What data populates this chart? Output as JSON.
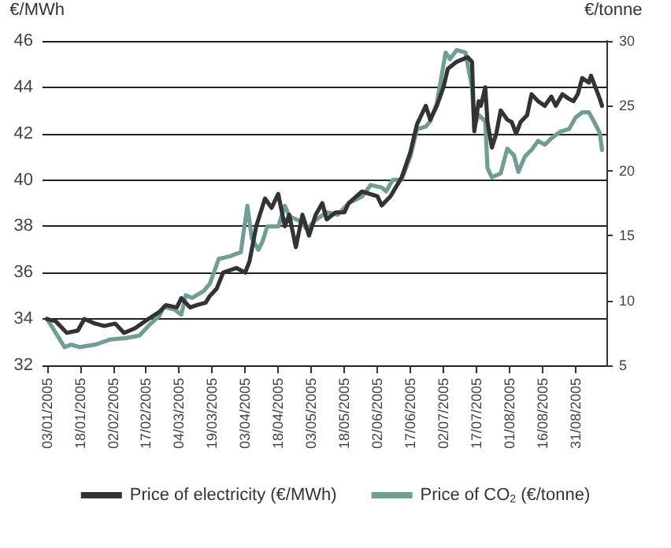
{
  "chart_data": {
    "type": "line",
    "ylabel": "€/MWh",
    "y2label": "€/tonne",
    "xlim": [
      "2005-01-01",
      "2005-09-14"
    ],
    "xticks": [
      {
        "value": "2005-01-03",
        "label": "03/01/2005"
      },
      {
        "value": "2005-01-18",
        "label": "18/01/2005"
      },
      {
        "value": "2005-02-02",
        "label": "02/02/2005"
      },
      {
        "value": "2005-02-17",
        "label": "17/02/2005"
      },
      {
        "value": "2005-03-04",
        "label": "04/03/2005"
      },
      {
        "value": "2005-03-19",
        "label": "19/03/2005"
      },
      {
        "value": "2005-04-03",
        "label": "03/04/2005"
      },
      {
        "value": "2005-04-18",
        "label": "18/04/2005"
      },
      {
        "value": "2005-05-03",
        "label": "03/05/2005"
      },
      {
        "value": "2005-05-18",
        "label": "18/05/2005"
      },
      {
        "value": "2005-06-02",
        "label": "02/06/2005"
      },
      {
        "value": "2005-06-17",
        "label": "17/06/2005"
      },
      {
        "value": "2005-07-02",
        "label": "02/07/2005"
      },
      {
        "value": "2005-07-17",
        "label": "17/07/2005"
      },
      {
        "value": "2005-08-01",
        "label": "01/08/2005"
      },
      {
        "value": "2005-08-16",
        "label": "16/08/2005"
      },
      {
        "value": "2005-08-31",
        "label": "31/08/2005"
      }
    ],
    "ylim": [
      32,
      46
    ],
    "yticks": [
      32,
      34,
      36,
      38,
      40,
      42,
      44,
      46
    ],
    "y2lim": [
      5,
      30
    ],
    "y2ticks": [
      5,
      10,
      15,
      20,
      25,
      30
    ],
    "grid": "y",
    "legend": "bottom",
    "line_style": "solid",
    "series": [
      {
        "name": "Price of electricity (€/MWh)",
        "color": "#333333",
        "x": [
          "2005-01-03",
          "2005-01-07",
          "2005-01-12",
          "2005-01-17",
          "2005-01-20",
          "2005-01-25",
          "2005-01-29",
          "2005-02-03",
          "2005-02-07",
          "2005-02-12",
          "2005-02-18",
          "2005-02-23",
          "2005-02-26",
          "2005-03-03",
          "2005-03-05",
          "2005-03-09",
          "2005-03-12",
          "2005-03-16",
          "2005-03-18",
          "2005-03-21",
          "2005-03-24",
          "2005-03-30",
          "2005-04-03",
          "2005-04-05",
          "2005-04-08",
          "2005-04-12",
          "2005-04-15",
          "2005-04-18",
          "2005-04-21",
          "2005-04-23",
          "2005-04-26",
          "2005-04-29",
          "2005-05-02",
          "2005-05-05",
          "2005-05-08",
          "2005-05-10",
          "2005-05-14",
          "2005-05-18",
          "2005-05-20",
          "2005-05-26",
          "2005-06-02",
          "2005-06-04",
          "2005-06-08",
          "2005-06-13",
          "2005-06-17",
          "2005-06-20",
          "2005-06-24",
          "2005-06-26",
          "2005-06-29",
          "2005-07-02",
          "2005-07-04",
          "2005-07-08",
          "2005-07-13",
          "2005-07-15",
          "2005-07-16",
          "2005-07-18",
          "2005-07-19",
          "2005-07-21",
          "2005-07-22",
          "2005-07-24",
          "2005-07-26",
          "2005-07-28",
          "2005-07-31",
          "2005-08-02",
          "2005-08-04",
          "2005-08-06",
          "2005-08-09",
          "2005-08-11",
          "2005-08-14",
          "2005-08-17",
          "2005-08-20",
          "2005-08-22",
          "2005-08-25",
          "2005-08-28",
          "2005-08-30",
          "2005-09-01",
          "2005-09-03",
          "2005-09-06",
          "2005-09-07",
          "2005-09-09",
          "2005-09-11",
          "2005-09-12"
        ],
        "values": [
          34.0,
          33.9,
          33.4,
          33.5,
          34.0,
          33.8,
          33.7,
          33.8,
          33.4,
          33.6,
          34.0,
          34.3,
          34.6,
          34.5,
          34.9,
          34.5,
          34.6,
          34.7,
          35.0,
          35.3,
          36.0,
          36.2,
          36.0,
          36.5,
          38.0,
          39.2,
          38.8,
          39.4,
          38.0,
          38.5,
          37.1,
          38.5,
          37.6,
          38.5,
          39.0,
          38.3,
          38.6,
          38.6,
          39.0,
          39.5,
          39.3,
          38.9,
          39.3,
          40.1,
          41.2,
          42.4,
          43.2,
          42.6,
          43.2,
          44.0,
          44.8,
          45.1,
          45.3,
          45.1,
          42.1,
          43.4,
          43.2,
          44.0,
          42.5,
          41.4,
          42.0,
          43.0,
          42.6,
          42.5,
          42.0,
          42.5,
          42.8,
          43.7,
          43.4,
          43.2,
          43.6,
          43.2,
          43.7,
          43.5,
          43.4,
          43.7,
          44.4,
          44.2,
          44.5,
          44.0,
          43.5,
          43.2
        ]
      },
      {
        "name": "Price of CO$_{2}$ (€/tonne)",
        "color": "#6e9e94",
        "axis": "y2",
        "x": [
          "2005-01-03",
          "2005-01-07",
          "2005-01-11",
          "2005-01-14",
          "2005-01-18",
          "2005-01-25",
          "2005-02-01",
          "2005-02-08",
          "2005-02-14",
          "2005-02-19",
          "2005-02-23",
          "2005-02-25",
          "2005-03-02",
          "2005-03-05",
          "2005-03-07",
          "2005-03-10",
          "2005-03-15",
          "2005-03-18",
          "2005-03-22",
          "2005-03-27",
          "2005-03-30",
          "2005-04-01",
          "2005-04-04",
          "2005-04-06",
          "2005-04-09",
          "2005-04-11",
          "2005-04-13",
          "2005-04-18",
          "2005-04-21",
          "2005-04-23",
          "2005-04-28",
          "2005-05-01",
          "2005-05-05",
          "2005-05-10",
          "2005-05-15",
          "2005-05-20",
          "2005-05-26",
          "2005-05-30",
          "2005-06-04",
          "2005-06-06",
          "2005-06-09",
          "2005-06-13",
          "2005-06-17",
          "2005-06-20",
          "2005-06-24",
          "2005-06-26",
          "2005-06-29",
          "2005-07-03",
          "2005-07-05",
          "2005-07-08",
          "2005-07-12",
          "2005-07-15",
          "2005-07-16",
          "2005-07-18",
          "2005-07-21",
          "2005-07-22",
          "2005-07-24",
          "2005-07-28",
          "2005-07-31",
          "2005-08-03",
          "2005-08-05",
          "2005-08-08",
          "2005-08-11",
          "2005-08-14",
          "2005-08-17",
          "2005-08-20",
          "2005-08-24",
          "2005-08-28",
          "2005-08-31",
          "2005-09-03",
          "2005-09-06",
          "2005-09-08",
          "2005-09-11",
          "2005-09-12"
        ],
        "values": [
          8.6,
          7.5,
          6.4,
          6.6,
          6.4,
          6.6,
          7.0,
          7.1,
          7.3,
          8.2,
          8.8,
          9.5,
          9.3,
          8.9,
          10.4,
          10.2,
          10.7,
          11.3,
          13.2,
          13.4,
          13.6,
          13.7,
          17.3,
          14.8,
          13.9,
          14.6,
          15.7,
          15.7,
          17.3,
          16.5,
          16.1,
          15.5,
          16.2,
          16.8,
          16.6,
          17.5,
          18.0,
          18.9,
          18.7,
          18.4,
          19.3,
          19.3,
          21.1,
          23.2,
          23.4,
          23.8,
          25.2,
          29.1,
          28.6,
          29.3,
          29.1,
          26.4,
          23.4,
          24.3,
          23.8,
          20.2,
          19.5,
          19.8,
          21.7,
          21.2,
          19.9,
          21.1,
          21.6,
          22.3,
          22.0,
          22.5,
          23.0,
          23.2,
          24.1,
          24.5,
          24.5,
          23.9,
          22.9,
          21.6
        ]
      }
    ]
  }
}
